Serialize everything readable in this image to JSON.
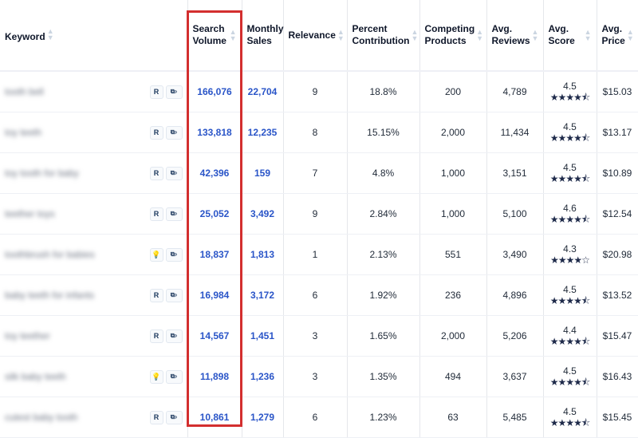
{
  "headers": {
    "keyword": "Keyword",
    "search_volume": [
      "Search",
      "Volume"
    ],
    "monthly_sales": [
      "Monthly",
      "Sales"
    ],
    "relevance": "Relevance",
    "percent_contribution": [
      "Percent",
      "Contribution"
    ],
    "competing_products": [
      "Competing",
      "Products"
    ],
    "avg_reviews": [
      "Avg.",
      "Reviews"
    ],
    "avg_score": [
      "Avg.",
      "Score"
    ],
    "avg_price": [
      "Avg.",
      "Price"
    ]
  },
  "rows": [
    {
      "keyword": "tooth bell",
      "badge": "R",
      "search_volume": "166,076",
      "monthly_sales": "22,704",
      "relevance": "9",
      "percent": "18.8%",
      "competing": "200",
      "reviews": "4,789",
      "score": "4.5",
      "stars": "★★★★⯪",
      "price": "$15.03"
    },
    {
      "keyword": "toy teeth",
      "badge": "R",
      "search_volume": "133,818",
      "monthly_sales": "12,235",
      "relevance": "8",
      "percent": "15.15%",
      "competing": "2,000",
      "reviews": "11,434",
      "score": "4.5",
      "stars": "★★★★⯪",
      "price": "$13.17"
    },
    {
      "keyword": "toy tooth for baby",
      "badge": "R",
      "search_volume": "42,396",
      "monthly_sales": "159",
      "relevance": "7",
      "percent": "4.8%",
      "competing": "1,000",
      "reviews": "3,151",
      "score": "4.5",
      "stars": "★★★★⯪",
      "price": "$10.89"
    },
    {
      "keyword": "teether toys",
      "badge": "R",
      "search_volume": "25,052",
      "monthly_sales": "3,492",
      "relevance": "9",
      "percent": "2.84%",
      "competing": "1,000",
      "reviews": "5,100",
      "score": "4.6",
      "stars": "★★★★⯪",
      "price": "$12.54"
    },
    {
      "keyword": "toothbrush for babies",
      "badge": "💡",
      "search_volume": "18,837",
      "monthly_sales": "1,813",
      "relevance": "1",
      "percent": "2.13%",
      "competing": "551",
      "reviews": "3,490",
      "score": "4.3",
      "stars": "★★★★☆",
      "price": "$20.98"
    },
    {
      "keyword": "baby teeth for infants",
      "badge": "R",
      "search_volume": "16,984",
      "monthly_sales": "3,172",
      "relevance": "6",
      "percent": "1.92%",
      "competing": "236",
      "reviews": "4,896",
      "score": "4.5",
      "stars": "★★★★⯪",
      "price": "$13.52"
    },
    {
      "keyword": "toy teether",
      "badge": "R",
      "search_volume": "14,567",
      "monthly_sales": "1,451",
      "relevance": "3",
      "percent": "1.65%",
      "competing": "2,000",
      "reviews": "5,206",
      "score": "4.4",
      "stars": "★★★★⯪",
      "price": "$15.47"
    },
    {
      "keyword": "silk baby teeth",
      "badge": "💡",
      "search_volume": "11,898",
      "monthly_sales": "1,236",
      "relevance": "3",
      "percent": "1.35%",
      "competing": "494",
      "reviews": "3,637",
      "score": "4.5",
      "stars": "★★★★⯪",
      "price": "$16.43"
    },
    {
      "keyword": "cutest baby tooth",
      "badge": "R",
      "search_volume": "10,861",
      "monthly_sales": "1,279",
      "relevance": "6",
      "percent": "1.23%",
      "competing": "63",
      "reviews": "5,485",
      "score": "4.5",
      "stars": "★★★★⯪",
      "price": "$15.45"
    }
  ]
}
